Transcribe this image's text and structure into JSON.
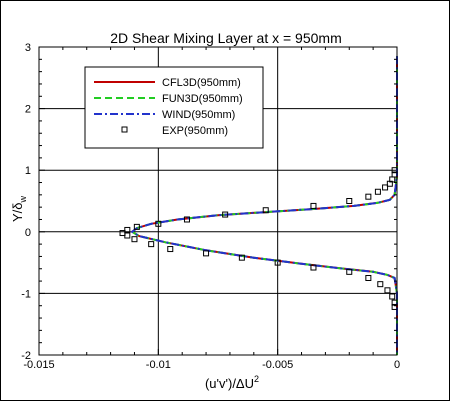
{
  "chart_data": {
    "type": "line",
    "title": "2D Shear Mixing Layer at x = 950mm",
    "xlabel": "(u'v')/ΔU",
    "xlabel_sup": "2",
    "ylabel": "Y/δ",
    "ylabel_sub": "w",
    "xlim": [
      -0.015,
      0
    ],
    "ylim": [
      -2,
      3
    ],
    "xticks": [
      -0.015,
      -0.01,
      -0.005,
      0
    ],
    "xtick_labels": [
      "-0.015",
      "-0.01",
      "-0.005",
      "0"
    ],
    "yticks": [
      -2,
      -1,
      0,
      1,
      2,
      3
    ],
    "ytick_labels": [
      "-2",
      "-1",
      "0",
      "1",
      "2",
      "3"
    ],
    "grid": true,
    "legend_position": "top-left",
    "series": [
      {
        "name": "CFL3D(950mm)",
        "color": "#c00000",
        "style": "solid",
        "x": [
          0,
          0,
          -0.0001,
          -0.0003,
          -0.0008,
          -0.0018,
          -0.0035,
          -0.0055,
          -0.0075,
          -0.0092,
          -0.0103,
          -0.0109,
          -0.0111,
          -0.0108,
          -0.0097,
          -0.008,
          -0.006,
          -0.004,
          -0.0022,
          -0.001,
          -0.0004,
          -0.0001,
          0,
          0
        ],
        "y": [
          2.85,
          0.9,
          0.6,
          0.52,
          0.47,
          0.42,
          0.37,
          0.32,
          0.27,
          0.2,
          0.13,
          0.06,
          0.0,
          -0.07,
          -0.17,
          -0.3,
          -0.42,
          -0.52,
          -0.6,
          -0.65,
          -0.7,
          -0.75,
          -1.0,
          -2.0
        ]
      },
      {
        "name": "FUN3D(950mm)",
        "color": "#22cc22",
        "style": "dashed",
        "x": [
          0,
          0,
          -0.0001,
          -0.0003,
          -0.0008,
          -0.0018,
          -0.0035,
          -0.0055,
          -0.0075,
          -0.0092,
          -0.0103,
          -0.0109,
          -0.0111,
          -0.0108,
          -0.0097,
          -0.008,
          -0.006,
          -0.004,
          -0.0022,
          -0.001,
          -0.0004,
          -0.0001,
          0,
          0
        ],
        "y": [
          2.85,
          0.9,
          0.6,
          0.52,
          0.47,
          0.42,
          0.37,
          0.32,
          0.27,
          0.2,
          0.13,
          0.06,
          0.0,
          -0.07,
          -0.17,
          -0.3,
          -0.42,
          -0.52,
          -0.6,
          -0.65,
          -0.7,
          -0.75,
          -1.0,
          -2.0
        ]
      },
      {
        "name": "WIND(950mm)",
        "color": "#2233cc",
        "style": "dashdot",
        "x": [
          0,
          0,
          -0.0001,
          -0.0003,
          -0.0008,
          -0.0018,
          -0.0035,
          -0.0055,
          -0.0075,
          -0.0092,
          -0.0103,
          -0.0109,
          -0.0111,
          -0.0108,
          -0.0097,
          -0.008,
          -0.006,
          -0.004,
          -0.0022,
          -0.001,
          -0.0004,
          -0.0001,
          0,
          0
        ],
        "y": [
          2.85,
          0.9,
          0.6,
          0.52,
          0.47,
          0.42,
          0.37,
          0.32,
          0.27,
          0.2,
          0.13,
          0.06,
          0.0,
          -0.07,
          -0.17,
          -0.3,
          -0.42,
          -0.52,
          -0.6,
          -0.65,
          -0.7,
          -0.75,
          -1.0,
          -2.0
        ]
      },
      {
        "name": "EXP(950mm)",
        "color": "#000000",
        "style": "markers",
        "marker": "square",
        "x": [
          -0.0001,
          -0.0001,
          -0.0002,
          -0.0003,
          -0.0005,
          -0.0008,
          -0.0012,
          -0.002,
          -0.0035,
          -0.0055,
          -0.0072,
          -0.0088,
          -0.01,
          -0.0109,
          -0.0113,
          -0.0115,
          -0.0113,
          -0.011,
          -0.0103,
          -0.0095,
          -0.008,
          -0.0065,
          -0.005,
          -0.0035,
          -0.002,
          -0.0012,
          -0.0007,
          -0.0004,
          -0.0002,
          -0.0001,
          -0.0001
        ],
        "y": [
          1.0,
          0.93,
          0.85,
          0.78,
          0.72,
          0.65,
          0.57,
          0.5,
          0.42,
          0.35,
          0.28,
          0.2,
          0.13,
          0.08,
          0.03,
          -0.02,
          -0.06,
          -0.12,
          -0.2,
          -0.28,
          -0.35,
          -0.42,
          -0.5,
          -0.58,
          -0.65,
          -0.75,
          -0.85,
          -0.95,
          -1.05,
          -1.15,
          -1.22
        ]
      }
    ]
  }
}
